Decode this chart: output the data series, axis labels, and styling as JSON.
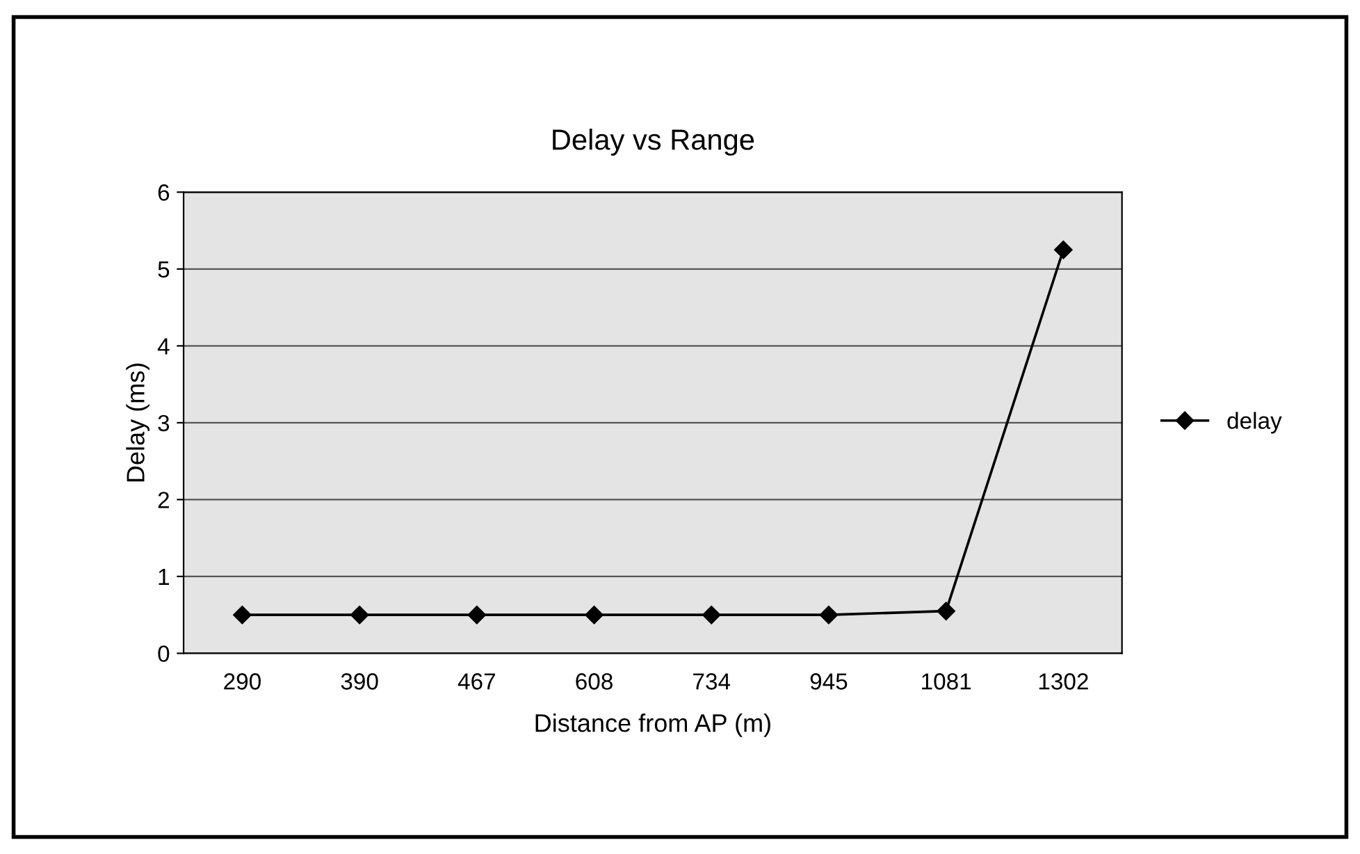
{
  "chart_data": {
    "type": "line",
    "title": "Delay vs Range",
    "xlabel": "Distance from AP (m)",
    "ylabel": "Delay (ms)",
    "categories": [
      "290",
      "390",
      "467",
      "608",
      "734",
      "945",
      "1081",
      "1302"
    ],
    "series": [
      {
        "name": "delay",
        "color": "#000000",
        "values": [
          0.5,
          0.5,
          0.5,
          0.5,
          0.5,
          0.5,
          0.55,
          5.25
        ]
      }
    ],
    "ylim": [
      0,
      6
    ],
    "yticks": [
      0,
      1,
      2,
      3,
      4,
      5,
      6
    ],
    "grid": "y",
    "legend": "right",
    "marker": "diamond",
    "line_style": "solid"
  }
}
